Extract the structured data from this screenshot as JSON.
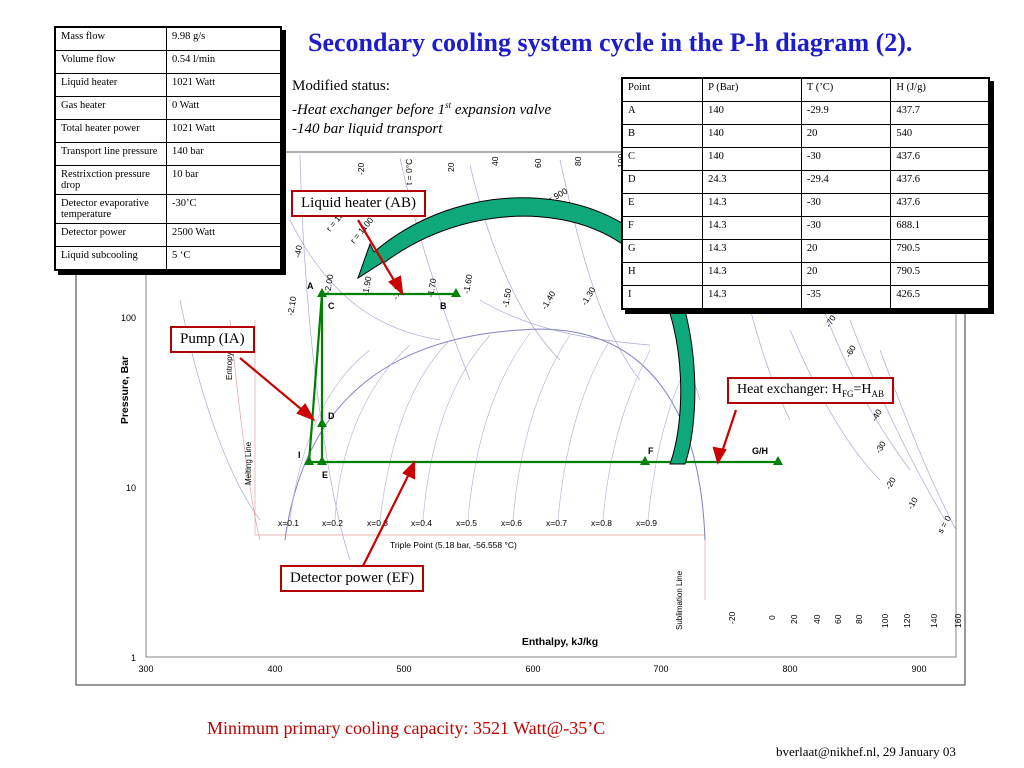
{
  "title": "Secondary cooling system cycle in the P-h diagram (2).",
  "modified": {
    "heading": "Modified status:",
    "line1_pre": "-Heat exchanger before 1",
    "line1_sup": "st",
    "line1_post": " expansion valve",
    "line2": "-140 bar liquid transport"
  },
  "params_table": [
    {
      "label": "Mass flow",
      "value": "9.98  g/s"
    },
    {
      "label": "Volume flow",
      "value": "0.54 l/min"
    },
    {
      "label": "Liquid heater",
      "value": "1021 Watt"
    },
    {
      "label": "Gas heater",
      "value": "0  Watt"
    },
    {
      "label": "Total heater power",
      "value": "1021 Watt"
    },
    {
      "label": "Transport line pressure",
      "value": "140 bar"
    },
    {
      "label": "Restrixction pressure drop",
      "value": "10 bar"
    },
    {
      "label": "Detector evaporative temperature",
      "value": "-30’C"
    },
    {
      "label": "Detector power",
      "value": "2500 Watt"
    },
    {
      "label": "Liquid subcooling",
      "value": "5 ‘C"
    }
  ],
  "points_table": {
    "headers": [
      "Point",
      "P (Bar)",
      "T  (’C)",
      "H (J/g)"
    ],
    "rows": [
      [
        "A",
        "140",
        "-29.9",
        "437.7"
      ],
      [
        "B",
        "140",
        "20",
        "540"
      ],
      [
        "C",
        "140",
        "-30",
        "437.6"
      ],
      [
        "D",
        "24.3",
        "-29.4",
        "437.6"
      ],
      [
        "E",
        "14.3",
        "-30",
        "437.6"
      ],
      [
        "F",
        "14.3",
        "-30",
        "688.1"
      ],
      [
        "G",
        "14.3",
        "20",
        "790.5"
      ],
      [
        "H",
        "14.3",
        "20",
        "790.5"
      ],
      [
        "I",
        "14.3",
        "-35",
        "426.5"
      ]
    ]
  },
  "callouts": {
    "liquid_heater": "Liquid heater (AB)",
    "pump": "Pump (IA)",
    "heat_exchanger_pre": "Heat exchanger: H",
    "heat_exchanger_sub1": "FG",
    "heat_exchanger_mid": "=H",
    "heat_exchanger_sub2": "AB",
    "detector_power": "Detector power (EF)"
  },
  "axes": {
    "xlabel": "Enthalpy, kJ/kg",
    "ylabel": "Pressure, Bar",
    "x_ticks": [
      "300",
      "400",
      "500",
      "600",
      "700",
      "800",
      "900"
    ],
    "y_ticks": [
      "100",
      "10",
      "1"
    ]
  },
  "diagram_labels": {
    "quality": [
      "x=0.1",
      "x=0.2",
      "x=0.3",
      "x=0.4",
      "x=0.5",
      "x=0.6",
      "x=0.7",
      "x=0.8",
      "x=0.9"
    ],
    "triple_point": "Triple Point (5.18 bar, -56.558 °C)",
    "melting_line": "Melting Line",
    "sublimation_line": "Sublimation Line",
    "entropy_line": "Entropy, kJ/",
    "bottom_temps": [
      "-20",
      "0",
      "20",
      "40",
      "60",
      "80",
      "100",
      "120",
      "140",
      "160"
    ],
    "top_temps": [
      "-20",
      "t = 0°C",
      "20",
      "40",
      "60",
      "80",
      "100"
    ],
    "right_temps": [
      "-70",
      "-60",
      "-40",
      "-30",
      "-20",
      "-10",
      "s = 0"
    ],
    "entropy_values": [
      "-2.10",
      "-2.00",
      "-1.90",
      "-1.80",
      "-1.70",
      "-1.60",
      "-1.50",
      "-1.40",
      "-1.30"
    ],
    "density_labels": [
      "r = 900",
      "r = 1000",
      "r = 1100",
      "-40"
    ]
  },
  "cycle_points": [
    "A",
    "B",
    "C",
    "D",
    "E",
    "F",
    "G/H",
    "I"
  ],
  "footer": {
    "capacity": "Minimum primary cooling capacity: 3521 Watt@-35’C",
    "credit": "bverlaat@nikhef.nl, 29 January 03"
  },
  "colors": {
    "title": "#1c1ccc",
    "cycle": "#008000",
    "callout_border": "#b30000",
    "arrow_fill": "#0fa87a",
    "footer_red": "#c00000"
  }
}
